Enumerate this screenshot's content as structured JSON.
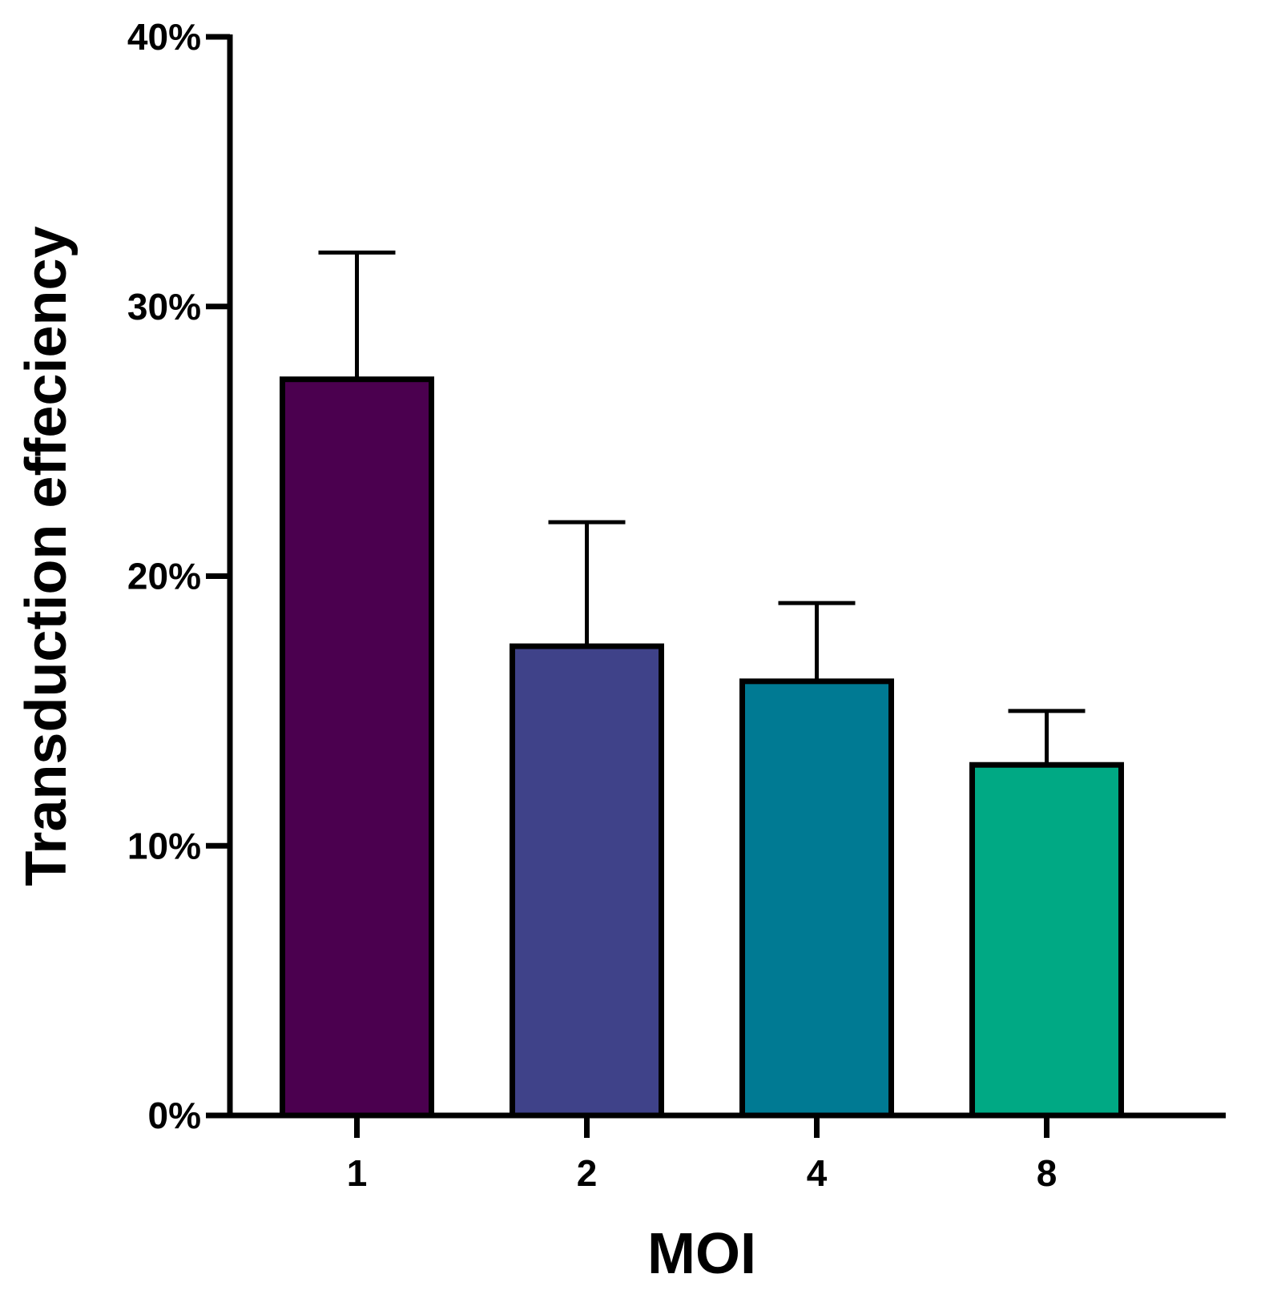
{
  "chart_data": {
    "type": "bar",
    "title": "",
    "xlabel": "MOI",
    "ylabel": "Transduction effeciency",
    "categories": [
      "1",
      "2",
      "4",
      "8"
    ],
    "values": [
      27.3,
      17.4,
      16.1,
      13.0
    ],
    "error_upper": [
      32.0,
      22.0,
      19.0,
      15.0
    ],
    "ylim": [
      0,
      40
    ],
    "yticks": [
      0,
      10,
      20,
      30,
      40
    ],
    "ytick_labels": [
      "0%",
      "10%",
      "20%",
      "30%",
      "40%"
    ],
    "bar_colors": [
      "#4b004f",
      "#3f4289",
      "#007a93",
      "#00a984"
    ],
    "grid": false,
    "legend": "none"
  }
}
